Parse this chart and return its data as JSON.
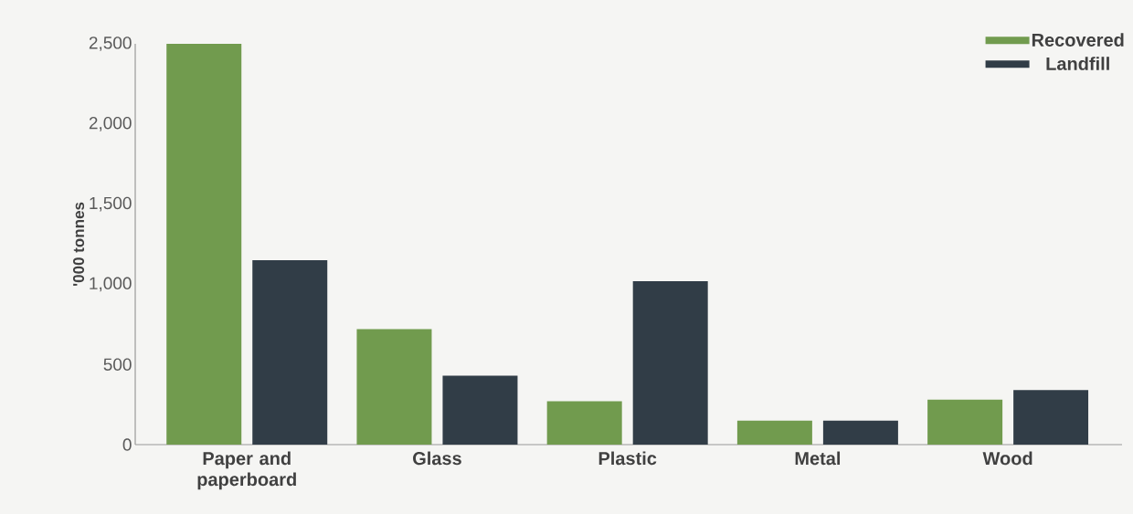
{
  "chart_data": {
    "type": "bar",
    "ylabel": "'000 tonnes",
    "categories": [
      "Paper and paperboard",
      "Glass",
      "Plastic",
      "Metal",
      "Wood"
    ],
    "series": [
      {
        "name": "Recovered",
        "color": "#719b4e",
        "values": [
          2500,
          720,
          270,
          150,
          280
        ]
      },
      {
        "name": "Landfill",
        "color": "#313d47",
        "values": [
          1150,
          430,
          1020,
          150,
          340
        ]
      }
    ],
    "ylim": [
      0,
      2500
    ],
    "yticks": [
      0,
      500,
      {
        "value": 1000,
        "label": "1,000"
      },
      {
        "value": 1500,
        "label": "1,500"
      },
      {
        "value": 2000,
        "label": "2,000"
      },
      {
        "value": 2500,
        "label": "2,500"
      }
    ],
    "grid": false,
    "legend": "top right"
  }
}
